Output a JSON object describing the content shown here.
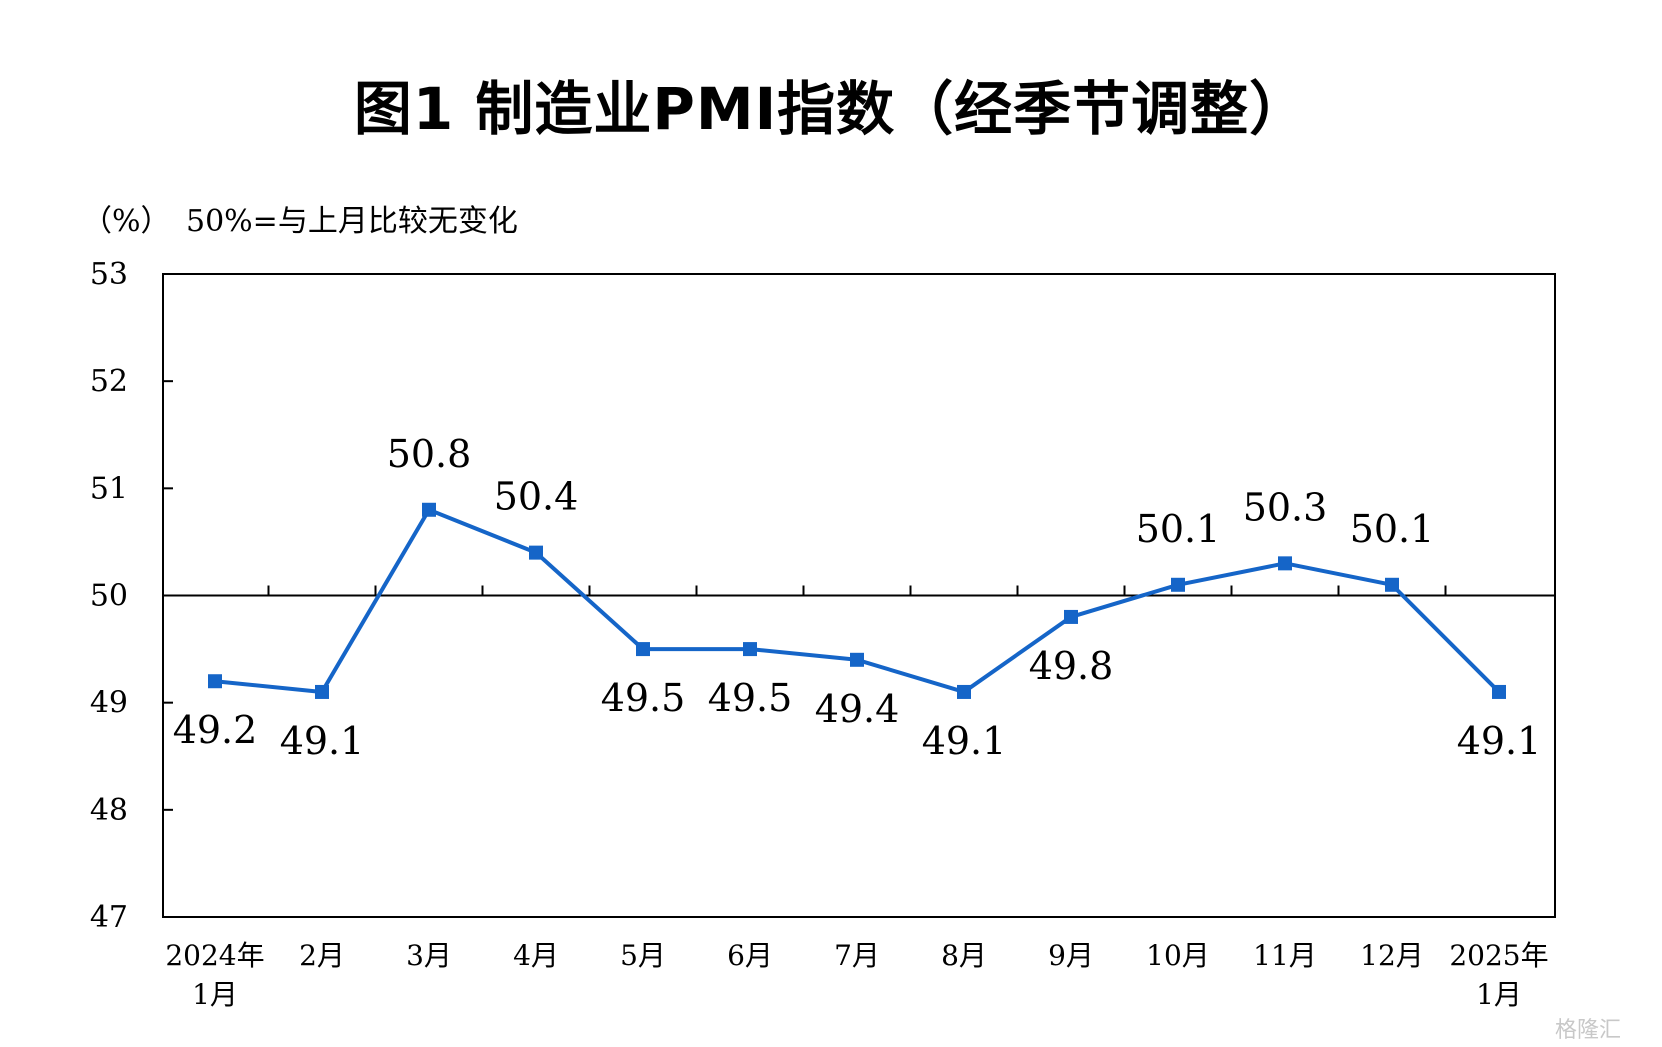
{
  "title": "图1  制造业PMI指数（经季节调整）",
  "unit": "（%）",
  "note": "50%=与上月比较无变化",
  "watermark": "格隆汇",
  "colors": {
    "line": "#1565c8",
    "axis": "#000000"
  },
  "chart_data": {
    "type": "line",
    "ylim": [
      47,
      53
    ],
    "yticks": [
      47,
      48,
      49,
      50,
      51,
      52,
      53
    ],
    "reference_line": 50,
    "categories": [
      [
        "2024年",
        "1月"
      ],
      [
        "2月"
      ],
      [
        "3月"
      ],
      [
        "4月"
      ],
      [
        "5月"
      ],
      [
        "6月"
      ],
      [
        "7月"
      ],
      [
        "8月"
      ],
      [
        "9月"
      ],
      [
        "10月"
      ],
      [
        "11月"
      ],
      [
        "12月"
      ],
      [
        "2025年",
        "1月"
      ]
    ],
    "series": [
      {
        "values": [
          49.2,
          49.1,
          50.8,
          50.4,
          49.5,
          49.5,
          49.4,
          49.1,
          49.8,
          50.1,
          50.3,
          50.1,
          49.1
        ],
        "labels": [
          "49.2",
          "49.1",
          "50.8",
          "50.4",
          "49.5",
          "49.5",
          "49.4",
          "49.1",
          "49.8",
          "50.1",
          "50.3",
          "50.1",
          "49.1"
        ],
        "label_positions": [
          "below",
          "below",
          "above",
          "above",
          "below",
          "below",
          "below",
          "below",
          "below",
          "above",
          "above",
          "above",
          "below"
        ]
      }
    ]
  }
}
